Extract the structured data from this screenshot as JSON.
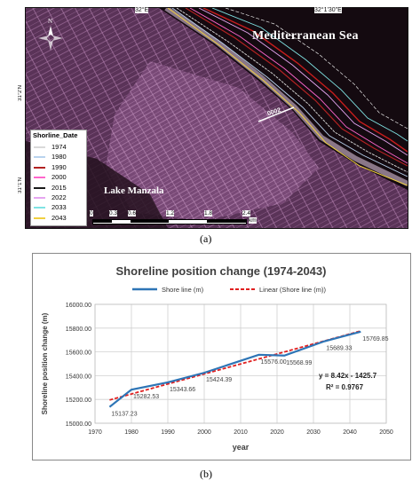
{
  "map": {
    "coords_top": [
      "32°E",
      "32°1'30\"E"
    ],
    "coords_left": [
      "31°2'N",
      "31°1'N"
    ],
    "north_label": "N",
    "sea_label": "Mediterranean Sea",
    "lake_label": "Lake Manzala",
    "transect_label": "0002",
    "legend_title": "Shorline_Date",
    "legend": [
      {
        "year": "1974",
        "color": "#d9d9d9"
      },
      {
        "year": "1980",
        "color": "#b9d3ee"
      },
      {
        "year": "1990",
        "color": "#b22222"
      },
      {
        "year": "2000",
        "color": "#ff66cc"
      },
      {
        "year": "2015",
        "color": "#1a1a1a"
      },
      {
        "year": "2022",
        "color": "#e6a5f0"
      },
      {
        "year": "2033",
        "color": "#7fe3e3"
      },
      {
        "year": "2043",
        "color": "#f0d040"
      }
    ],
    "scale_ticks": [
      "0",
      "0.3",
      "0.6",
      "1.2",
      "1.8",
      "2.4"
    ],
    "scale_unit": "km"
  },
  "caption_a": "(a)",
  "caption_b": "(b)",
  "chart_data": {
    "type": "line",
    "title": "Shoreline position change (1974-2043)",
    "xlabel": "year",
    "ylabel": "Shoreline position change (m)",
    "xlim": [
      1970,
      2050
    ],
    "ylim": [
      15000,
      16000
    ],
    "x_ticks": [
      "1970",
      "1980",
      "1990",
      "2000",
      "2010",
      "2020",
      "2030",
      "2040",
      "2050"
    ],
    "y_ticks": [
      "15000.00",
      "15200.00",
      "15400.00",
      "15600.00",
      "15800.00",
      "16000.00"
    ],
    "legend_placement": "top-center",
    "series": [
      {
        "name": "Shore line (m)",
        "color": "#2e75b6",
        "x": [
          1974,
          1980,
          1990,
          2000,
          2015,
          2022,
          2033,
          2043
        ],
        "y": [
          15137.23,
          15282.53,
          15343.66,
          15424.39,
          15576.0,
          15568.99,
          15689.33,
          15769.85
        ]
      },
      {
        "name": "Linear (Shore line (m))",
        "color": "#e02020",
        "dashed": true,
        "trend": {
          "slope": 8.42,
          "intercept": -1425.7
        }
      }
    ],
    "data_labels": [
      {
        "x": 1974,
        "y": 15137.23,
        "text": "15137.23"
      },
      {
        "x": 1980,
        "y": 15282.53,
        "text": "15282.53"
      },
      {
        "x": 1990,
        "y": 15343.66,
        "text": "15343.66"
      },
      {
        "x": 2000,
        "y": 15424.39,
        "text": "15424.39"
      },
      {
        "x": 2015,
        "y": 15576.0,
        "text": "15576.00"
      },
      {
        "x": 2022,
        "y": 15568.99,
        "text": "15568.99"
      },
      {
        "x": 2033,
        "y": 15689.33,
        "text": "15689.33"
      },
      {
        "x": 2043,
        "y": 15769.85,
        "text": "15769.85"
      }
    ],
    "equation": "y = 8.42x - 1425.7",
    "r_squared": "R² = 0.9767",
    "grid": true
  }
}
